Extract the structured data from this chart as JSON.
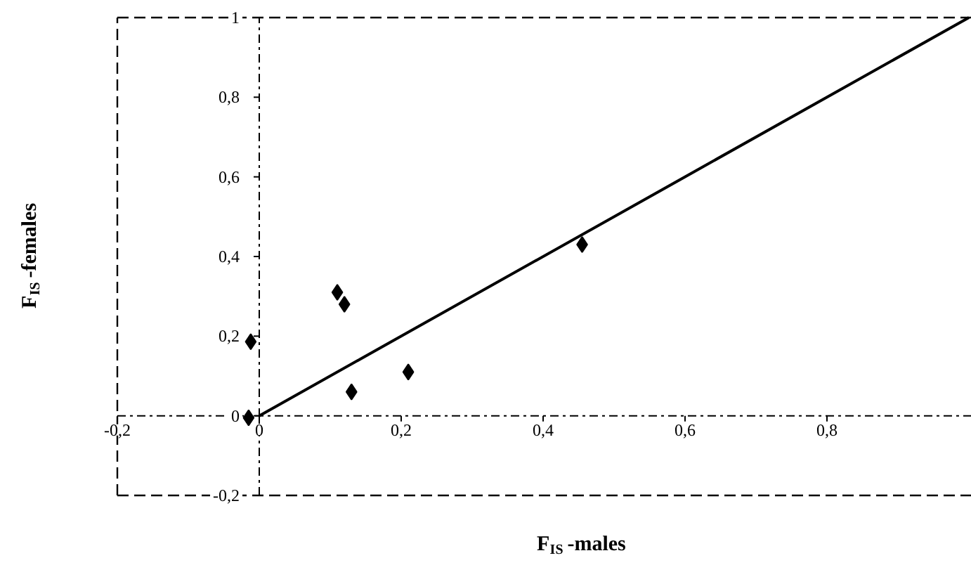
{
  "chart_data": {
    "type": "scatter",
    "xlabel": "F$_{IS}$-males",
    "ylabel": "F$_{IS}$-females",
    "xlim": [
      -0.2,
      1
    ],
    "ylim": [
      -0.2,
      1
    ],
    "xticks": [
      {
        "value": -0.2,
        "label": "-0,2"
      },
      0,
      {
        "value": 0.2,
        "label": "0,2"
      },
      {
        "value": 0.4,
        "label": "0,4"
      },
      {
        "value": 0.6,
        "label": "0,6"
      },
      {
        "value": 0.8,
        "label": "0,8"
      }
    ],
    "yticks": [
      {
        "value": -0.2,
        "label": "-0,2"
      },
      0,
      {
        "value": 0.2,
        "label": "0,2"
      },
      {
        "value": 0.4,
        "label": "0,4"
      },
      {
        "value": 0.6,
        "label": "0,6"
      },
      {
        "value": 0.8,
        "label": "0,8"
      },
      1
    ],
    "marker": "diamond",
    "ref_lines": [
      {
        "axis": "x",
        "value": -0.2,
        "line_style": "dashed"
      },
      {
        "axis": "y",
        "value": -0.2,
        "line_style": "dashed"
      },
      {
        "axis": "y",
        "value": 1,
        "line_style": "dashed"
      }
    ],
    "series": [
      {
        "color": "#000000",
        "x": [
          -0.015,
          -0.012,
          0.11,
          0.12,
          0.13,
          0.21,
          0.455
        ],
        "values": [
          -0.005,
          0.186,
          0.31,
          0.28,
          0.06,
          0.11,
          0.43
        ]
      },
      {
        "type": "line",
        "color": "#000000",
        "x": [
          0,
          1
        ],
        "values": [
          0,
          1
        ],
        "marker": "none",
        "line_style": "solid"
      }
    ]
  }
}
